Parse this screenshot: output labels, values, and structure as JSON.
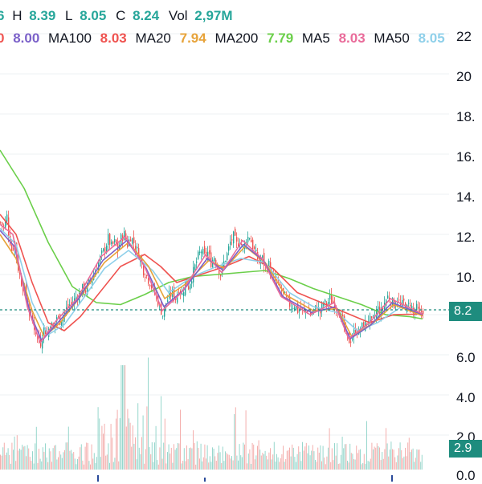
{
  "legend": {
    "open_value": "6",
    "high_label": "H",
    "high_value": "8.39",
    "low_label": "L",
    "low_value": "8.05",
    "close_label": "C",
    "close_value": "8.24",
    "vol_label": "Vol",
    "vol_value": "2,97M",
    "ma_first_value": "8.00",
    "ma100_label": "MA100",
    "ma100_value": "8.03",
    "ma20_label": "MA20",
    "ma20_value": "7.94",
    "ma200_label": "MA200",
    "ma200_value": "7.79",
    "ma5_label": "MA5",
    "ma5_value": "8.03",
    "ma50_label": "MA50",
    "ma50_value": "8.05",
    "row2_prefix": "0"
  },
  "price_axis_labels": [
    "22",
    "20",
    "18.",
    "16.",
    "14.",
    "12.",
    "10.",
    "8.2",
    "6.0",
    "4.0",
    "2.0",
    "0.0"
  ],
  "current_price_tag": "8.2",
  "current_volume_tag": "2.9",
  "colors": {
    "up": "#26a69a",
    "down": "#ef5350",
    "ma_first": "#7b61c9",
    "ma100": "#ef5350",
    "ma20": "#e7a33a",
    "ma200": "#6bcf4a",
    "ma5": "#e96b9a",
    "ma50": "#8fd0ea",
    "price_tag": "#1e8c7e"
  },
  "chart_data": {
    "type": "candlestick",
    "ylim": [
      0,
      23
    ],
    "current_price": 8.24,
    "price_path": [
      [
        0,
        12.6
      ],
      [
        4,
        12.4
      ],
      [
        8,
        12.9
      ],
      [
        10,
        12.1
      ],
      [
        14,
        11.2
      ],
      [
        18,
        11.6
      ],
      [
        22,
        10.3
      ],
      [
        26,
        9.6
      ],
      [
        30,
        9.2
      ],
      [
        34,
        8.4
      ],
      [
        38,
        7.9
      ],
      [
        42,
        7.4
      ],
      [
        46,
        6.9
      ],
      [
        50,
        6.6
      ],
      [
        54,
        7.4
      ],
      [
        58,
        7.0
      ],
      [
        62,
        7.6
      ],
      [
        66,
        7.3
      ],
      [
        70,
        7.9
      ],
      [
        74,
        7.7
      ],
      [
        78,
        8.0
      ],
      [
        82,
        8.3
      ],
      [
        86,
        8.5
      ],
      [
        90,
        8.6
      ],
      [
        94,
        8.9
      ],
      [
        98,
        9.0
      ],
      [
        102,
        9.3
      ],
      [
        106,
        9.2
      ],
      [
        110,
        9.6
      ],
      [
        114,
        9.8
      ],
      [
        118,
        10.2
      ],
      [
        122,
        10.6
      ],
      [
        126,
        11.0
      ],
      [
        130,
        11.3
      ],
      [
        134,
        11.8
      ],
      [
        138,
        11.4
      ],
      [
        142,
        11.6
      ],
      [
        146,
        11.2
      ],
      [
        150,
        11.8
      ],
      [
        154,
        12.0
      ],
      [
        158,
        11.5
      ],
      [
        162,
        11.9
      ],
      [
        166,
        11.6
      ],
      [
        170,
        11.2
      ],
      [
        174,
        10.8
      ],
      [
        178,
        10.2
      ],
      [
        182,
        9.9
      ],
      [
        186,
        9.6
      ],
      [
        190,
        9.2
      ],
      [
        194,
        8.9
      ],
      [
        198,
        8.4
      ],
      [
        202,
        8.0
      ],
      [
        206,
        8.6
      ],
      [
        210,
        8.9
      ],
      [
        214,
        9.1
      ],
      [
        218,
        8.8
      ],
      [
        222,
        9.3
      ],
      [
        226,
        9.0
      ],
      [
        230,
        9.6
      ],
      [
        234,
        9.4
      ],
      [
        238,
        9.9
      ],
      [
        242,
        10.4
      ],
      [
        246,
        10.9
      ],
      [
        250,
        11.2
      ],
      [
        254,
        10.9
      ],
      [
        258,
        11.1
      ],
      [
        262,
        10.6
      ],
      [
        266,
        10.9
      ],
      [
        270,
        10.4
      ],
      [
        274,
        10.0
      ],
      [
        278,
        10.6
      ],
      [
        282,
        11.0
      ],
      [
        286,
        11.6
      ],
      [
        290,
        11.9
      ],
      [
        294,
        11.5
      ],
      [
        298,
        11.7
      ],
      [
        302,
        11.3
      ],
      [
        306,
        11.8
      ],
      [
        310,
        11.9
      ],
      [
        314,
        11.4
      ],
      [
        318,
        11.0
      ],
      [
        322,
        10.6
      ],
      [
        326,
        10.8
      ],
      [
        330,
        10.3
      ],
      [
        334,
        10.5
      ],
      [
        338,
        9.9
      ],
      [
        342,
        9.7
      ],
      [
        346,
        9.4
      ],
      [
        350,
        9.2
      ],
      [
        354,
        8.9
      ],
      [
        358,
        8.6
      ],
      [
        362,
        8.4
      ],
      [
        366,
        8.5
      ],
      [
        370,
        8.2
      ],
      [
        374,
        8.3
      ],
      [
        378,
        8.1
      ],
      [
        382,
        8.3
      ],
      [
        386,
        8.0
      ],
      [
        390,
        8.2
      ],
      [
        394,
        8.4
      ],
      [
        398,
        8.1
      ],
      [
        402,
        8.6
      ],
      [
        406,
        8.5
      ],
      [
        410,
        8.8
      ],
      [
        414,
        8.6
      ],
      [
        418,
        8.4
      ],
      [
        422,
        8.1
      ],
      [
        426,
        7.6
      ],
      [
        430,
        7.0
      ],
      [
        434,
        6.7
      ],
      [
        438,
        6.9
      ],
      [
        442,
        7.3
      ],
      [
        446,
        7.1
      ],
      [
        450,
        7.4
      ],
      [
        454,
        7.5
      ],
      [
        458,
        7.8
      ],
      [
        462,
        7.6
      ],
      [
        466,
        7.9
      ],
      [
        470,
        8.3
      ],
      [
        474,
        8.1
      ],
      [
        478,
        8.6
      ],
      [
        482,
        8.9
      ],
      [
        486,
        8.7
      ],
      [
        490,
        8.5
      ],
      [
        494,
        8.8
      ],
      [
        498,
        8.4
      ],
      [
        502,
        8.6
      ],
      [
        506,
        8.3
      ],
      [
        510,
        8.6
      ],
      [
        514,
        8.1
      ],
      [
        518,
        8.3
      ],
      [
        522,
        8.0
      ],
      [
        526,
        8.24
      ]
    ],
    "ma_series": [
      {
        "key": "ma200",
        "points": [
          [
            0,
            16.2
          ],
          [
            30,
            14.3
          ],
          [
            60,
            11.6
          ],
          [
            90,
            9.4
          ],
          [
            120,
            8.6
          ],
          [
            150,
            8.5
          ],
          [
            180,
            9.0
          ],
          [
            210,
            9.6
          ],
          [
            240,
            9.9
          ],
          [
            270,
            10.0
          ],
          [
            300,
            10.1
          ],
          [
            330,
            10.2
          ],
          [
            360,
            9.8
          ],
          [
            390,
            9.3
          ],
          [
            420,
            8.9
          ],
          [
            450,
            8.5
          ],
          [
            480,
            8.0
          ],
          [
            510,
            7.9
          ],
          [
            526,
            7.79
          ]
        ]
      },
      {
        "key": "ma100",
        "points": [
          [
            0,
            13.0
          ],
          [
            20,
            12.0
          ],
          [
            40,
            9.6
          ],
          [
            60,
            7.6
          ],
          [
            80,
            7.2
          ],
          [
            100,
            7.9
          ],
          [
            120,
            8.9
          ],
          [
            150,
            10.4
          ],
          [
            180,
            11.0
          ],
          [
            200,
            10.4
          ],
          [
            220,
            9.6
          ],
          [
            250,
            10.0
          ],
          [
            280,
            10.4
          ],
          [
            310,
            10.9
          ],
          [
            340,
            10.3
          ],
          [
            370,
            9.1
          ],
          [
            400,
            8.6
          ],
          [
            430,
            8.1
          ],
          [
            460,
            7.6
          ],
          [
            490,
            8.0
          ],
          [
            526,
            8.03
          ]
        ]
      },
      {
        "key": "ma50",
        "points": [
          [
            0,
            12.3
          ],
          [
            20,
            11.5
          ],
          [
            40,
            8.6
          ],
          [
            60,
            7.0
          ],
          [
            80,
            7.5
          ],
          [
            100,
            8.6
          ],
          [
            130,
            10.3
          ],
          [
            160,
            11.2
          ],
          [
            190,
            10.2
          ],
          [
            210,
            9.1
          ],
          [
            240,
            9.9
          ],
          [
            270,
            10.4
          ],
          [
            300,
            10.8
          ],
          [
            330,
            10.6
          ],
          [
            360,
            9.1
          ],
          [
            390,
            8.4
          ],
          [
            420,
            8.1
          ],
          [
            445,
            7.2
          ],
          [
            470,
            7.6
          ],
          [
            500,
            8.4
          ],
          [
            526,
            8.05
          ]
        ]
      },
      {
        "key": "ma20",
        "points": [
          [
            0,
            12.0
          ],
          [
            20,
            10.8
          ],
          [
            40,
            8.2
          ],
          [
            55,
            6.9
          ],
          [
            75,
            7.6
          ],
          [
            100,
            8.9
          ],
          [
            130,
            10.6
          ],
          [
            160,
            11.6
          ],
          [
            185,
            10.4
          ],
          [
            205,
            8.8
          ],
          [
            230,
            9.5
          ],
          [
            260,
            10.7
          ],
          [
            280,
            10.3
          ],
          [
            305,
            11.4
          ],
          [
            330,
            10.6
          ],
          [
            355,
            9.0
          ],
          [
            390,
            8.2
          ],
          [
            420,
            8.3
          ],
          [
            438,
            6.9
          ],
          [
            465,
            7.6
          ],
          [
            490,
            8.5
          ],
          [
            526,
            7.94
          ]
        ]
      },
      {
        "key": "ma_first",
        "points": [
          [
            0,
            12.2
          ],
          [
            18,
            11.4
          ],
          [
            38,
            8.0
          ],
          [
            52,
            6.7
          ],
          [
            72,
            7.6
          ],
          [
            98,
            8.8
          ],
          [
            128,
            10.7
          ],
          [
            158,
            11.7
          ],
          [
            182,
            10.3
          ],
          [
            204,
            8.4
          ],
          [
            228,
            9.2
          ],
          [
            258,
            10.8
          ],
          [
            278,
            10.2
          ],
          [
            303,
            11.5
          ],
          [
            328,
            10.7
          ],
          [
            352,
            8.9
          ],
          [
            388,
            8.1
          ],
          [
            418,
            8.4
          ],
          [
            436,
            6.8
          ],
          [
            462,
            7.5
          ],
          [
            488,
            8.6
          ],
          [
            526,
            8.0
          ]
        ]
      },
      {
        "key": "ma5",
        "points": [
          [
            0,
            12.5
          ],
          [
            16,
            12.0
          ],
          [
            34,
            8.4
          ],
          [
            50,
            6.6
          ],
          [
            70,
            7.7
          ],
          [
            96,
            8.8
          ],
          [
            126,
            10.9
          ],
          [
            156,
            11.9
          ],
          [
            180,
            10.4
          ],
          [
            202,
            8.2
          ],
          [
            226,
            9.1
          ],
          [
            256,
            11.0
          ],
          [
            276,
            10.1
          ],
          [
            302,
            11.7
          ],
          [
            326,
            10.8
          ],
          [
            350,
            8.9
          ],
          [
            386,
            8.0
          ],
          [
            416,
            8.6
          ],
          [
            434,
            6.8
          ],
          [
            460,
            7.6
          ],
          [
            486,
            8.8
          ],
          [
            526,
            8.03
          ]
        ]
      }
    ]
  }
}
